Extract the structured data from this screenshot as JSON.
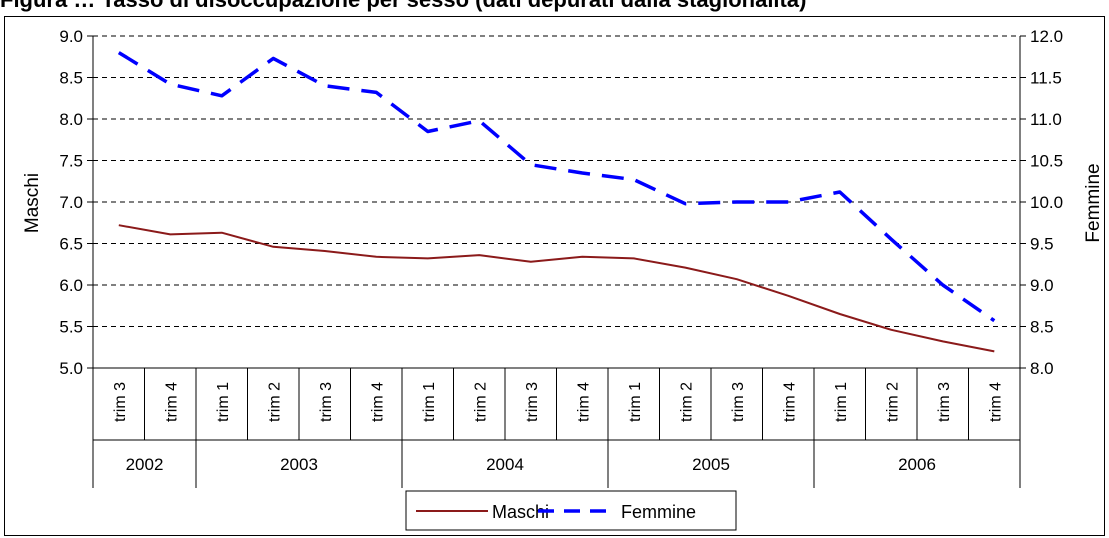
{
  "title": "Figura … Tasso di disoccupazione per sesso (dati depurati dalla stagionalità)",
  "chart_data": {
    "type": "line",
    "title": "",
    "quarters": [
      "trim 3",
      "trim 4",
      "trim 1",
      "trim 2",
      "trim 3",
      "trim 4",
      "trim 1",
      "trim 2",
      "trim 3",
      "trim 4",
      "trim 1",
      "trim 2",
      "trim 3",
      "trim 4",
      "trim 1",
      "trim 2",
      "trim 3",
      "trim 4"
    ],
    "years": [
      {
        "label": "2002",
        "span": 2
      },
      {
        "label": "2003",
        "span": 4
      },
      {
        "label": "2004",
        "span": 4
      },
      {
        "label": "2005",
        "span": 4
      },
      {
        "label": "2006",
        "span": 4
      }
    ],
    "y_left": {
      "label": "Maschi",
      "min": 5.0,
      "max": 9.0,
      "ticks": [
        "5.0",
        "5.5",
        "6.0",
        "6.5",
        "7.0",
        "7.5",
        "8.0",
        "8.5",
        "9.0"
      ]
    },
    "y_right": {
      "label": "Femmine",
      "min": 8.0,
      "max": 12.0,
      "ticks": [
        "8.0",
        "8.5",
        "9.0",
        "9.5",
        "10.0",
        "10.5",
        "11.0",
        "11.5",
        "12.0"
      ]
    },
    "grid": true,
    "legend_position": "bottom-center",
    "series": [
      {
        "name": "Maschi",
        "axis": "left",
        "color": "#8B1A1A",
        "style": "solid",
        "values": [
          6.72,
          6.61,
          6.63,
          6.46,
          6.41,
          6.34,
          6.32,
          6.36,
          6.28,
          6.34,
          6.32,
          6.21,
          6.07,
          5.87,
          5.65,
          5.46,
          5.32,
          5.2
        ]
      },
      {
        "name": "Femmine",
        "axis": "right",
        "color": "#0000FF",
        "style": "dashed",
        "values": [
          11.8,
          11.42,
          11.28,
          11.73,
          11.4,
          11.32,
          10.85,
          10.98,
          10.45,
          10.35,
          10.27,
          9.98,
          10.0,
          10.0,
          10.12,
          9.55,
          9.0,
          8.57
        ]
      }
    ]
  }
}
